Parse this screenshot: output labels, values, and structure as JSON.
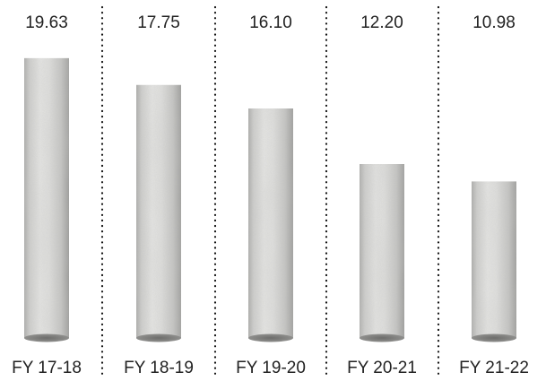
{
  "chart_data": {
    "type": "bar",
    "categories": [
      "FY 17-18",
      "FY 18-19",
      "FY 19-20",
      "FY 20-21",
      "FY 21-22"
    ],
    "values": [
      19.63,
      17.75,
      16.1,
      12.2,
      10.98
    ],
    "value_labels": [
      "19.63",
      "17.75",
      "16.10",
      "12.20",
      "10.98"
    ],
    "title": "",
    "xlabel": "",
    "ylabel": "",
    "ylim": [
      0,
      20.5
    ],
    "grid": false,
    "legend": "none",
    "bar_style": "concrete-cylinder",
    "colors": {
      "bar_light": "#e6e6e4",
      "bar_mid": "#c9c9c7",
      "bar_dark": "#9d9d9b",
      "separator": "#111111",
      "text": "#222222"
    }
  }
}
